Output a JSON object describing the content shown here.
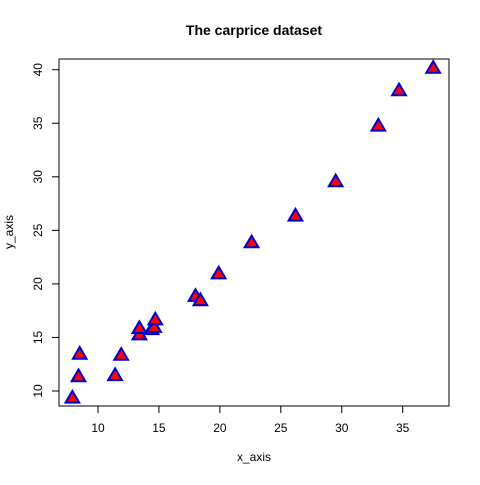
{
  "chart_data": {
    "type": "scatter",
    "title": "The carprice dataset",
    "xlabel": "x_axis",
    "ylabel": "y_axis",
    "xlim": [
      6.8,
      38.8
    ],
    "ylim": [
      8.6,
      41.0
    ],
    "xticks": [
      10,
      15,
      20,
      25,
      30,
      35
    ],
    "yticks": [
      10,
      15,
      20,
      25,
      30,
      35,
      40
    ],
    "grid": false,
    "marker": "triangle",
    "marker_fill": "#ff0000",
    "marker_stroke": "#0000cc",
    "points": [
      {
        "x": 7.9,
        "y": 9.4
      },
      {
        "x": 8.4,
        "y": 11.4
      },
      {
        "x": 8.5,
        "y": 13.5
      },
      {
        "x": 11.4,
        "y": 11.5
      },
      {
        "x": 11.9,
        "y": 13.4
      },
      {
        "x": 13.4,
        "y": 15.3
      },
      {
        "x": 13.4,
        "y": 15.9
      },
      {
        "x": 14.4,
        "y": 15.8
      },
      {
        "x": 14.6,
        "y": 16.0
      },
      {
        "x": 14.7,
        "y": 16.7
      },
      {
        "x": 18.0,
        "y": 18.9
      },
      {
        "x": 18.4,
        "y": 18.5
      },
      {
        "x": 19.9,
        "y": 21.0
      },
      {
        "x": 22.6,
        "y": 23.9
      },
      {
        "x": 26.2,
        "y": 26.4
      },
      {
        "x": 29.5,
        "y": 29.6
      },
      {
        "x": 33.0,
        "y": 34.8
      },
      {
        "x": 34.7,
        "y": 38.1
      },
      {
        "x": 37.5,
        "y": 40.2
      }
    ]
  }
}
